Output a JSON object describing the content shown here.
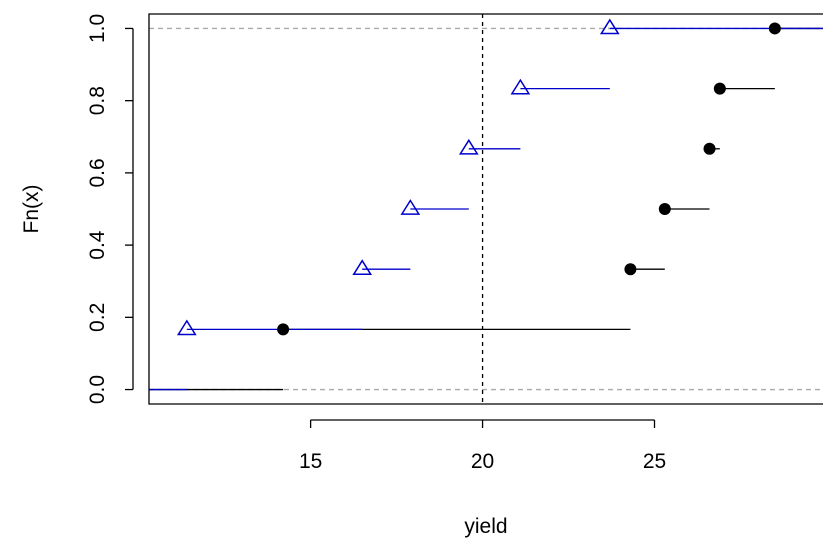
{
  "chart_data": {
    "type": "step",
    "xlabel": "yield",
    "ylabel": "Fn(x)",
    "xlim": [
      10.3,
      29.9
    ],
    "ylim": [
      -0.04,
      1.04
    ],
    "xticks": [
      15,
      20,
      25
    ],
    "yticks": [
      0.0,
      0.2,
      0.4,
      0.6,
      0.8,
      1.0
    ],
    "xtick_labels": [
      "15",
      "20",
      "25"
    ],
    "ytick_labels": [
      "0.0",
      "0.2",
      "0.4",
      "0.6",
      "0.8",
      "1.0"
    ],
    "reference_lines": {
      "horizontal": [
        0,
        1
      ],
      "vertical": [
        20
      ]
    },
    "series": [
      {
        "marker": "filled-circle",
        "color": "#000000",
        "x": [
          14.2,
          24.3,
          25.3,
          26.6,
          26.9,
          28.5
        ],
        "y": [
          0.1667,
          0.3333,
          0.5,
          0.6667,
          0.8333,
          1.0
        ]
      },
      {
        "marker": "open-triangle",
        "color": "#0000CD",
        "x": [
          11.4,
          16.5,
          17.9,
          19.6,
          21.1,
          23.7
        ],
        "y": [
          0.1667,
          0.3333,
          0.5,
          0.6667,
          0.8333,
          1.0
        ]
      }
    ]
  }
}
